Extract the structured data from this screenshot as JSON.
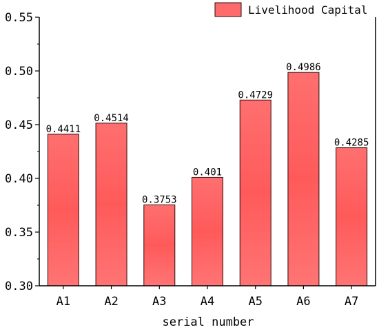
{
  "chart_data": {
    "type": "bar",
    "title": "",
    "xlabel": "serial number",
    "ylabel": "",
    "categories": [
      "A1",
      "A2",
      "A3",
      "A4",
      "A5",
      "A6",
      "A7"
    ],
    "series": [
      {
        "name": "Livelihood Capital",
        "values": [
          0.4411,
          0.4514,
          0.3753,
          0.401,
          0.4729,
          0.4986,
          0.4285
        ],
        "labels": [
          "0.4411",
          "0.4514",
          "0.3753",
          "0.401",
          "0.4729",
          "0.4986",
          "0.4285"
        ]
      }
    ],
    "ylim": [
      0.3,
      0.55
    ],
    "yticks": [
      0.3,
      0.35,
      0.4,
      0.45,
      0.5,
      0.55
    ],
    "ytick_labels": [
      "0.30",
      "0.35",
      "0.40",
      "0.45",
      "0.50",
      "0.55"
    ],
    "grid": false,
    "legend_position": "top-right",
    "bar_color": "#ff6b6b",
    "bar_edge_color": "#2a0a0a"
  }
}
